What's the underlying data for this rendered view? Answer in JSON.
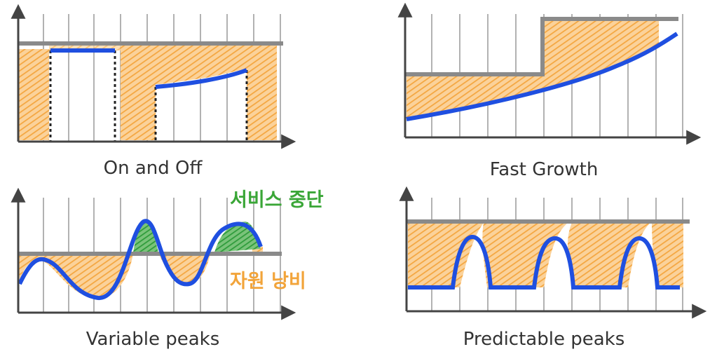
{
  "panels": [
    {
      "id": "on-off",
      "caption": "On and Off"
    },
    {
      "id": "fast-growth",
      "caption": "Fast Growth"
    },
    {
      "id": "variable-peaks",
      "caption": "Variable peaks"
    },
    {
      "id": "predictable-peaks",
      "caption": "Predictable peaks"
    }
  ],
  "annotations": {
    "service_interruption": "서비스 중단",
    "resource_waste": "자원 낭비"
  },
  "colors": {
    "capacity_line": "#8a8a8a",
    "demand_line": "#1f4fe0",
    "waste_fill": "#f7b05a",
    "interruption_fill": "#2e9b3a",
    "annotation_green": "#3aa637",
    "annotation_orange": "#f2a43a",
    "grid": "#555555"
  }
}
